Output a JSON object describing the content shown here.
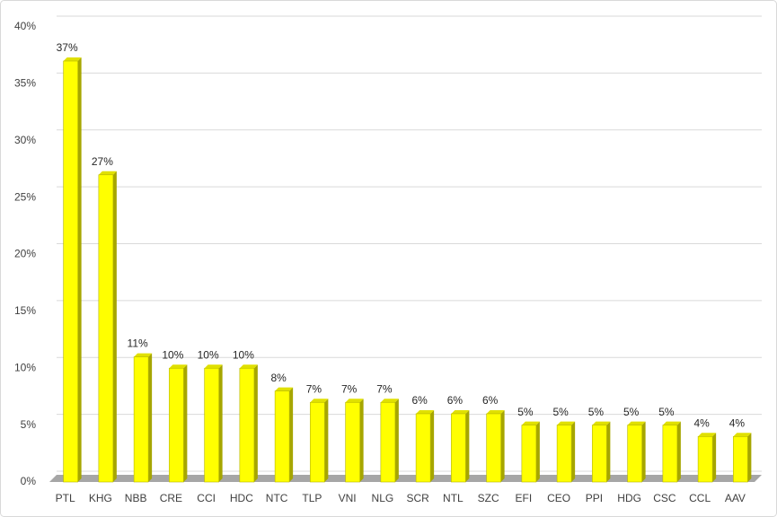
{
  "chart_data": {
    "type": "bar3d",
    "categories": [
      "PTL",
      "KHG",
      "NBB",
      "CRE",
      "CCI",
      "HDC",
      "NTC",
      "TLP",
      "VNI",
      "NLG",
      "SCR",
      "NTL",
      "SZC",
      "EFI",
      "CEO",
      "PPI",
      "HDG",
      "CSC",
      "CCL",
      "AAV"
    ],
    "values": [
      37,
      27,
      11,
      10,
      10,
      10,
      8,
      7,
      7,
      7,
      6,
      6,
      6,
      5,
      5,
      5,
      5,
      5,
      4,
      4
    ],
    "value_labels": [
      "37%",
      "27%",
      "11%",
      "10%",
      "10%",
      "10%",
      "8%",
      "7%",
      "7%",
      "7%",
      "6%",
      "6%",
      "6%",
      "5%",
      "5%",
      "5%",
      "5%",
      "5%",
      "4%",
      "4%"
    ],
    "color": "#ffff00",
    "ylim": [
      0,
      40
    ],
    "yticks": [
      {
        "value": 0,
        "label": "0%"
      },
      {
        "value": 5,
        "label": "5%"
      },
      {
        "value": 10,
        "label": "10%"
      },
      {
        "value": 15,
        "label": "15%"
      },
      {
        "value": 20,
        "label": "20%"
      },
      {
        "value": 25,
        "label": "25%"
      },
      {
        "value": 30,
        "label": "30%"
      },
      {
        "value": 35,
        "label": "35%"
      },
      {
        "value": 40,
        "label": "40%"
      }
    ],
    "grid": true
  }
}
